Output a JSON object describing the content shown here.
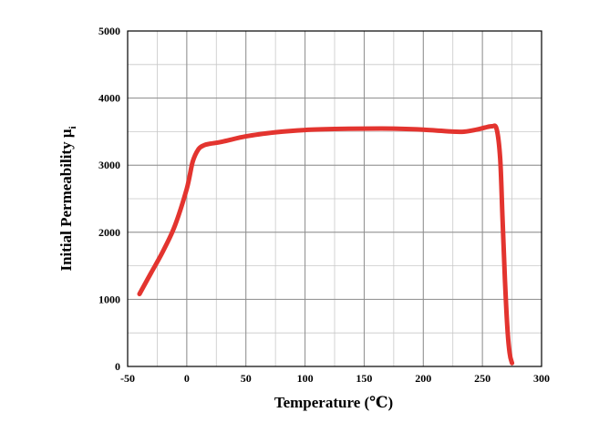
{
  "chart_data": {
    "type": "line",
    "xlabel": "Temperature (℃)",
    "ylabel_main": "Initial Permeability μ",
    "ylabel_sub": "i",
    "xlim": [
      -50,
      300
    ],
    "ylim": [
      0,
      5000
    ],
    "x_ticks": [
      -50,
      0,
      50,
      100,
      150,
      200,
      250,
      300
    ],
    "y_ticks": [
      0,
      1000,
      2000,
      3000,
      4000,
      5000
    ],
    "x_minor_step": 25,
    "y_minor_step": 500,
    "grid": true,
    "line_color": "#e3342f",
    "series": [
      {
        "x": [
          -40,
          -30,
          -20,
          -10,
          0,
          5,
          10,
          15,
          20,
          30,
          50,
          75,
          100,
          125,
          150,
          175,
          200,
          225,
          235,
          245,
          252,
          258,
          262,
          265,
          267,
          269,
          271,
          273,
          275
        ],
        "y": [
          1080,
          1400,
          1720,
          2100,
          2650,
          3050,
          3240,
          3300,
          3320,
          3350,
          3430,
          3490,
          3525,
          3540,
          3545,
          3545,
          3530,
          3500,
          3500,
          3530,
          3560,
          3580,
          3540,
          3100,
          2200,
          1300,
          600,
          200,
          50
        ]
      }
    ]
  }
}
